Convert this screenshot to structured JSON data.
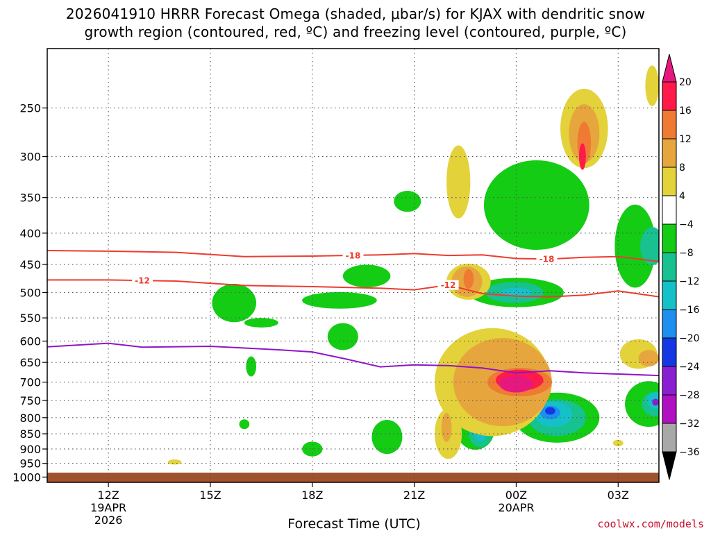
{
  "chart_data": {
    "type": "heatmap",
    "title_line1": "2026041910 HRRR Forecast Omega (shaded, μbar/s) for KJAX with dendritic snow",
    "title_line2": "growth region (contoured, red, ºC) and freezing level (contoured, purple, ºC)",
    "xlabel": "Forecast Time (UTC)",
    "y_axis": {
      "scale": "log-pressure",
      "range_hpa": [
        1020,
        200
      ],
      "ticks": [
        250,
        300,
        350,
        400,
        450,
        500,
        550,
        600,
        650,
        700,
        750,
        800,
        850,
        900,
        950,
        1000
      ]
    },
    "x_axis": {
      "range_hours": [
        10.2,
        28.2
      ],
      "ticks": [
        {
          "hour": 12,
          "label": "12Z",
          "sub": [
            "19APR",
            "2026"
          ]
        },
        {
          "hour": 15,
          "label": "15Z",
          "sub": []
        },
        {
          "hour": 18,
          "label": "18Z",
          "sub": []
        },
        {
          "hour": 21,
          "label": "21Z",
          "sub": []
        },
        {
          "hour": 24,
          "label": "00Z",
          "sub": [
            "20APR"
          ]
        },
        {
          "hour": 27,
          "label": "03Z",
          "sub": []
        }
      ]
    },
    "grid": true,
    "colorbar": {
      "labels": [
        "20",
        "16",
        "12",
        "8",
        "4",
        "−4",
        "−8",
        "−12",
        "−16",
        "−20",
        "−24",
        "−28",
        "−32",
        "−36"
      ],
      "colors": [
        "#ff1a4a",
        "#ef7a33",
        "#e7a63d",
        "#e3d23a",
        "#ffffff",
        "#14cc14",
        "#17c190",
        "#15c1c8",
        "#1d8fef",
        "#1436e3",
        "#8a1fd1",
        "#b010c2",
        "#a8a8a8"
      ],
      "top_arrow": "#e8177f",
      "bottom_arrow": "#000000"
    },
    "contours": [
      {
        "name": "-18",
        "color": "#ee3b2e",
        "label_at": [
          19.2,
          24.9
        ],
        "points": [
          [
            10.2,
            427
          ],
          [
            12,
            428
          ],
          [
            14,
            430
          ],
          [
            16,
            437
          ],
          [
            18,
            436
          ],
          [
            20,
            434
          ],
          [
            21,
            432
          ],
          [
            22,
            435
          ],
          [
            23,
            434
          ],
          [
            24,
            440
          ],
          [
            25,
            441
          ],
          [
            26,
            438
          ],
          [
            27,
            437
          ],
          [
            28.2,
            445
          ]
        ]
      },
      {
        "name": "-12",
        "color": "#ee3b2e",
        "label_at": [
          13.0,
          22.0
        ],
        "points": [
          [
            10.2,
            477
          ],
          [
            12,
            477
          ],
          [
            14,
            479
          ],
          [
            16,
            487
          ],
          [
            18,
            489
          ],
          [
            20,
            492
          ],
          [
            21,
            495
          ],
          [
            22,
            486
          ],
          [
            23,
            502
          ],
          [
            24,
            507
          ],
          [
            25,
            508
          ],
          [
            26,
            505
          ],
          [
            27,
            497
          ],
          [
            28.2,
            508
          ]
        ]
      },
      {
        "name": "0",
        "color": "#8f14c8",
        "label_at": [],
        "points": [
          [
            10.2,
            613
          ],
          [
            12,
            605
          ],
          [
            13,
            614
          ],
          [
            15,
            612
          ],
          [
            17,
            620
          ],
          [
            18,
            625
          ],
          [
            19,
            642
          ],
          [
            20,
            661
          ],
          [
            21,
            656
          ],
          [
            22,
            658
          ],
          [
            23,
            664
          ],
          [
            24,
            676
          ],
          [
            25,
            671
          ],
          [
            26,
            676
          ],
          [
            28.2,
            683
          ]
        ]
      }
    ],
    "omega_regions": [
      {
        "level": "-8",
        "color": "#14cc14",
        "h": 15.7,
        "p": 520,
        "dh": 0.65,
        "dp": 75
      },
      {
        "level": "-8",
        "color": "#14cc14",
        "h": 16.2,
        "p": 660,
        "dh": 0.15,
        "dp": 50
      },
      {
        "level": "-8",
        "color": "#14cc14",
        "h": 16.5,
        "p": 560,
        "dh": 0.5,
        "dp": 20
      },
      {
        "level": "-8",
        "color": "#14cc14",
        "h": 18.8,
        "p": 515,
        "dh": 1.1,
        "dp": 32
      },
      {
        "level": "-8",
        "color": "#14cc14",
        "h": 19.6,
        "p": 470,
        "dh": 0.7,
        "dp": 40
      },
      {
        "level": "-8",
        "color": "#14cc14",
        "h": 18.9,
        "p": 590,
        "dh": 0.45,
        "dp": 60
      },
      {
        "level": "-8",
        "color": "#14cc14",
        "h": 20.8,
        "p": 355,
        "dh": 0.4,
        "dp": 28
      },
      {
        "level": "-8",
        "color": "#14cc14",
        "h": 24.6,
        "p": 360,
        "dh": 1.55,
        "dp": 120
      },
      {
        "level": "-8",
        "color": "#14cc14",
        "h": 24.0,
        "p": 500,
        "dh": 1.4,
        "dp": 55
      },
      {
        "level": "-8",
        "color": "#14cc14",
        "h": 27.5,
        "p": 420,
        "dh": 0.6,
        "dp": 130
      },
      {
        "level": "-8",
        "color": "#14cc14",
        "h": 25.2,
        "p": 800,
        "dh": 1.25,
        "dp": 150
      },
      {
        "level": "-8",
        "color": "#14cc14",
        "h": 22.8,
        "p": 840,
        "dh": 0.55,
        "dp": 120
      },
      {
        "level": "-8",
        "color": "#14cc14",
        "h": 20.2,
        "p": 860,
        "dh": 0.45,
        "dp": 110
      },
      {
        "level": "-8",
        "color": "#14cc14",
        "h": 18.0,
        "p": 900,
        "dh": 0.3,
        "dp": 50
      },
      {
        "level": "-8",
        "color": "#14cc14",
        "h": 16.0,
        "p": 820,
        "dh": 0.15,
        "dp": 30
      },
      {
        "level": "-8",
        "color": "#14cc14",
        "h": 27.9,
        "p": 760,
        "dh": 0.7,
        "dp": 130
      },
      {
        "level": "-12",
        "color": "#17c190",
        "h": 23.95,
        "p": 500,
        "dh": 0.85,
        "dp": 40
      },
      {
        "level": "-12",
        "color": "#17c190",
        "h": 25.2,
        "p": 800,
        "dh": 0.85,
        "dp": 110
      },
      {
        "level": "-12",
        "color": "#17c190",
        "h": 22.95,
        "p": 845,
        "dh": 0.35,
        "dp": 95
      },
      {
        "level": "-12",
        "color": "#17c190",
        "h": 28.0,
        "p": 420,
        "dh": 0.35,
        "dp": 60
      },
      {
        "level": "-12",
        "color": "#17c190",
        "h": 28.1,
        "p": 760,
        "dh": 0.4,
        "dp": 70
      },
      {
        "level": "-16",
        "color": "#15c1c8",
        "h": 24.0,
        "p": 500,
        "dh": 0.45,
        "dp": 18
      },
      {
        "level": "-16",
        "color": "#15c1c8",
        "h": 25.1,
        "p": 790,
        "dh": 0.55,
        "dp": 75
      },
      {
        "level": "-16",
        "color": "#15c1c8",
        "h": 22.95,
        "p": 845,
        "dh": 0.2,
        "dp": 55
      },
      {
        "level": "-16",
        "color": "#15c1c8",
        "h": 28.1,
        "p": 750,
        "dh": 0.25,
        "dp": 45
      },
      {
        "level": "-20",
        "color": "#1d8fef",
        "h": 25.0,
        "p": 785,
        "dh": 0.3,
        "dp": 40
      },
      {
        "level": "-24",
        "color": "#1436e3",
        "h": 25.0,
        "p": 780,
        "dh": 0.15,
        "dp": 22
      },
      {
        "level": "-28",
        "color": "#8a1fd1",
        "h": 28.1,
        "p": 755,
        "dh": 0.1,
        "dp": 20
      },
      {
        "level": "4",
        "color": "#e3d23a",
        "h": 23.3,
        "p": 700,
        "dh": 1.7,
        "dp": 280
      },
      {
        "level": "4",
        "color": "#e3d23a",
        "h": 22.6,
        "p": 480,
        "dh": 0.65,
        "dp": 65
      },
      {
        "level": "4",
        "color": "#e3d23a",
        "h": 22.0,
        "p": 850,
        "dh": 0.4,
        "dp": 160
      },
      {
        "level": "4",
        "color": "#e3d23a",
        "h": 22.3,
        "p": 330,
        "dh": 0.35,
        "dp": 90
      },
      {
        "level": "4",
        "color": "#e3d23a",
        "h": 26.0,
        "p": 270,
        "dh": 0.7,
        "dp": 80
      },
      {
        "level": "4",
        "color": "#e3d23a",
        "h": 27.6,
        "p": 630,
        "dh": 0.55,
        "dp": 70
      },
      {
        "level": "4",
        "color": "#e3d23a",
        "h": 28.0,
        "p": 230,
        "dh": 0.2,
        "dp": 35
      },
      {
        "level": "4",
        "color": "#e3d23a",
        "h": 13.95,
        "p": 945,
        "dh": 0.2,
        "dp": 18
      },
      {
        "level": "4",
        "color": "#e3d23a",
        "h": 27.0,
        "p": 880,
        "dh": 0.15,
        "dp": 22
      },
      {
        "level": "8",
        "color": "#e7a63d",
        "h": 23.6,
        "p": 700,
        "dh": 1.45,
        "dp": 230
      },
      {
        "level": "8",
        "color": "#e7a63d",
        "h": 22.55,
        "p": 480,
        "dh": 0.45,
        "dp": 55
      },
      {
        "level": "8",
        "color": "#e7a63d",
        "h": 21.95,
        "p": 830,
        "dh": 0.15,
        "dp": 90
      },
      {
        "level": "8",
        "color": "#e7a63d",
        "h": 26.0,
        "p": 275,
        "dh": 0.45,
        "dp": 60
      },
      {
        "level": "8",
        "color": "#e7a63d",
        "h": 27.9,
        "p": 640,
        "dh": 0.3,
        "dp": 40
      },
      {
        "level": "12",
        "color": "#ef7a33",
        "h": 24.1,
        "p": 700,
        "dh": 0.95,
        "dp": 75
      },
      {
        "level": "12",
        "color": "#ef7a33",
        "h": 22.6,
        "p": 475,
        "dh": 0.15,
        "dp": 35
      },
      {
        "level": "12",
        "color": "#ef7a33",
        "h": 26.0,
        "p": 285,
        "dh": 0.2,
        "dp": 45
      },
      {
        "level": "16",
        "color": "#ff1a4a",
        "h": 24.1,
        "p": 695,
        "dh": 0.7,
        "dp": 55
      },
      {
        "level": "16",
        "color": "#ff1a4a",
        "h": 25.95,
        "p": 300,
        "dh": 0.1,
        "dp": 30
      },
      {
        "level": "20",
        "color": "#e8177f",
        "h": 24.0,
        "p": 705,
        "dh": 0.5,
        "dp": 45
      }
    ]
  },
  "credit": "coolwx.com/models"
}
